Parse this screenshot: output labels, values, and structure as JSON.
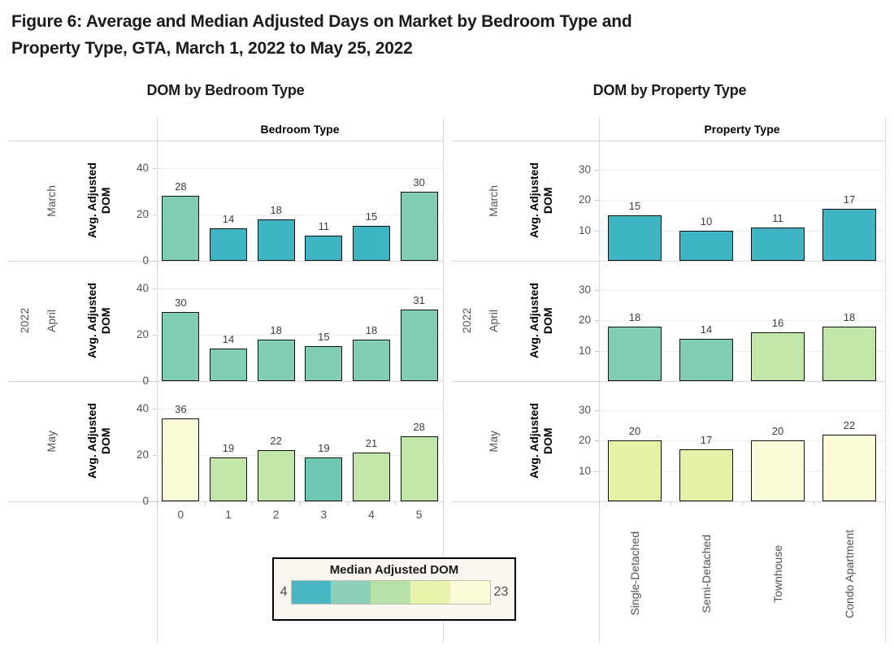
{
  "title": {
    "line1": "Figure 6: Average and Median Adjusted Days on Market by Bedroom Type and",
    "line2": "Property Type, GTA, March 1, 2022 to May 25, 2022"
  },
  "year_label": "2022",
  "palette": {
    "teal": "#3fb4c3",
    "seafoam": "#83ccb5",
    "seagreen": "#6ec7b1",
    "lightgreen": "#c2e5aa",
    "yellowgreen": "#e6f1a8",
    "ivory": "#fcfbd9"
  },
  "legend": {
    "title": "Median Adjusted DOM",
    "min_label": "4",
    "max_label": "23",
    "swatch_colors": [
      "#49b6c3",
      "#8ed1ba",
      "#b7e1a6",
      "#e8f3ab",
      "#fbfbda"
    ]
  },
  "chart_data": [
    {
      "type": "bar",
      "panel_title": "DOM by Bedroom Type",
      "column_header": "Bedroom Type",
      "ylabel": "Avg. Adjusted DOM",
      "ylabel_lines": [
        "Avg. Adjusted",
        "DOM"
      ],
      "categories": [
        "0",
        "1",
        "2",
        "3",
        "4",
        "5"
      ],
      "yticks": [
        0,
        20,
        40
      ],
      "ylim": [
        0,
        52
      ],
      "rotate_x_labels": false,
      "rows": [
        {
          "month": "March",
          "values": [
            28,
            14,
            18,
            11,
            15,
            30
          ],
          "bar_colors": [
            "seafoam",
            "teal",
            "teal",
            "teal",
            "teal",
            "seafoam"
          ]
        },
        {
          "month": "April",
          "values": [
            30,
            14,
            18,
            15,
            18,
            31
          ],
          "bar_colors": [
            "seafoam",
            "seafoam",
            "seafoam",
            "seafoam",
            "seafoam",
            "seafoam"
          ]
        },
        {
          "month": "May",
          "values": [
            36,
            19,
            22,
            19,
            21,
            28
          ],
          "bar_colors": [
            "ivory",
            "lightgreen",
            "lightgreen",
            "seagreen",
            "lightgreen",
            "lightgreen"
          ]
        }
      ]
    },
    {
      "type": "bar",
      "panel_title": "DOM by Property Type",
      "column_header": "Property Type",
      "ylabel": "Avg. Adjusted DOM",
      "ylabel_lines": [
        "Avg. Adjusted",
        "DOM"
      ],
      "categories": [
        "Single-Detached",
        "Semi-Detached",
        "Townhouse",
        "Condo Apartment"
      ],
      "yticks": [
        10,
        20,
        30
      ],
      "ylim": [
        0,
        39.5
      ],
      "rotate_x_labels": true,
      "rows": [
        {
          "month": "March",
          "values": [
            15,
            10,
            11,
            17
          ],
          "bar_colors": [
            "teal",
            "teal",
            "teal",
            "teal"
          ]
        },
        {
          "month": "April",
          "values": [
            18,
            14,
            16,
            18
          ],
          "bar_colors": [
            "seafoam",
            "seafoam",
            "lightgreen",
            "lightgreen"
          ]
        },
        {
          "month": "May",
          "values": [
            20,
            17,
            20,
            22
          ],
          "bar_colors": [
            "yellowgreen",
            "yellowgreen",
            "ivory",
            "ivory"
          ]
        }
      ]
    }
  ]
}
